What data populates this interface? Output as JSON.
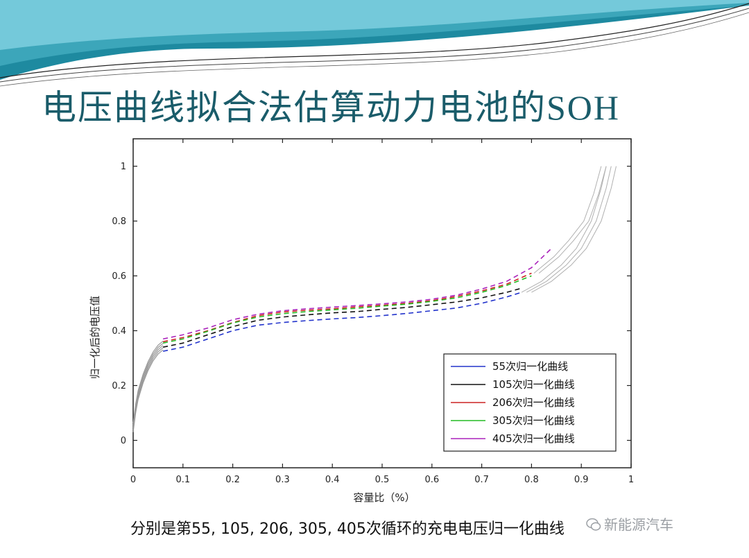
{
  "slide": {
    "title_main": "电压曲线拟合法估算动力电池的",
    "title_suffix": "SOH",
    "caption": "分别是第55, 105, 206, 305, 405次循环的充电电压归一化曲线",
    "watermark": "新能源汽车",
    "colors": {
      "banner_dark": "#1e8aa0",
      "banner_light": "#7ecfdf",
      "title": "#1a5c6a"
    }
  },
  "chart_data": {
    "type": "line",
    "xlabel": "容量比（%）",
    "ylabel": "归一化后的电压值",
    "xlim": [
      0,
      1
    ],
    "ylim": [
      -0.1,
      1.1
    ],
    "xticks": [
      "0",
      "0.1",
      "0.2",
      "0.3",
      "0.4",
      "0.5",
      "0.6",
      "0.7",
      "0.8",
      "0.9",
      "1"
    ],
    "yticks": [
      "0",
      "0.2",
      "0.4",
      "0.6",
      "0.8",
      "1"
    ],
    "legend_position": "bottom-right",
    "grid": false,
    "series": [
      {
        "name": "55次归一化曲线",
        "color": "#2233cc",
        "x": [
          0.06,
          0.1,
          0.15,
          0.2,
          0.25,
          0.3,
          0.35,
          0.4,
          0.45,
          0.5,
          0.55,
          0.6,
          0.65,
          0.7,
          0.75,
          0.78
        ],
        "y": [
          0.325,
          0.34,
          0.37,
          0.4,
          0.42,
          0.43,
          0.437,
          0.443,
          0.448,
          0.455,
          0.463,
          0.473,
          0.483,
          0.5,
          0.523,
          0.54
        ]
      },
      {
        "name": "105次归一化曲线",
        "color": "#111111",
        "x": [
          0.06,
          0.1,
          0.15,
          0.2,
          0.25,
          0.3,
          0.35,
          0.4,
          0.45,
          0.5,
          0.55,
          0.6,
          0.65,
          0.7,
          0.75,
          0.78
        ],
        "y": [
          0.34,
          0.355,
          0.385,
          0.415,
          0.438,
          0.45,
          0.458,
          0.465,
          0.47,
          0.478,
          0.485,
          0.495,
          0.505,
          0.52,
          0.54,
          0.555
        ]
      },
      {
        "name": "206次归一化曲线",
        "color": "#cc2222",
        "x": [
          0.06,
          0.1,
          0.15,
          0.2,
          0.25,
          0.3,
          0.35,
          0.4,
          0.45,
          0.5,
          0.55,
          0.6,
          0.65,
          0.7,
          0.75,
          0.8
        ],
        "y": [
          0.36,
          0.375,
          0.4,
          0.43,
          0.455,
          0.468,
          0.475,
          0.48,
          0.487,
          0.493,
          0.5,
          0.51,
          0.525,
          0.545,
          0.57,
          0.61
        ]
      },
      {
        "name": "305次归一化曲线",
        "color": "#22bb22",
        "x": [
          0.06,
          0.1,
          0.15,
          0.2,
          0.25,
          0.3,
          0.35,
          0.4,
          0.45,
          0.5,
          0.55,
          0.6,
          0.65,
          0.7,
          0.75,
          0.8
        ],
        "y": [
          0.355,
          0.37,
          0.398,
          0.428,
          0.45,
          0.462,
          0.47,
          0.476,
          0.482,
          0.49,
          0.497,
          0.507,
          0.52,
          0.54,
          0.565,
          0.6
        ]
      },
      {
        "name": "405次归一化曲线",
        "color": "#aa22bb",
        "x": [
          0.06,
          0.1,
          0.15,
          0.2,
          0.25,
          0.3,
          0.35,
          0.4,
          0.45,
          0.5,
          0.55,
          0.6,
          0.65,
          0.7,
          0.75,
          0.8,
          0.84
        ],
        "y": [
          0.37,
          0.385,
          0.41,
          0.44,
          0.46,
          0.473,
          0.48,
          0.486,
          0.492,
          0.498,
          0.505,
          0.515,
          0.53,
          0.552,
          0.58,
          0.63,
          0.7
        ]
      }
    ]
  }
}
